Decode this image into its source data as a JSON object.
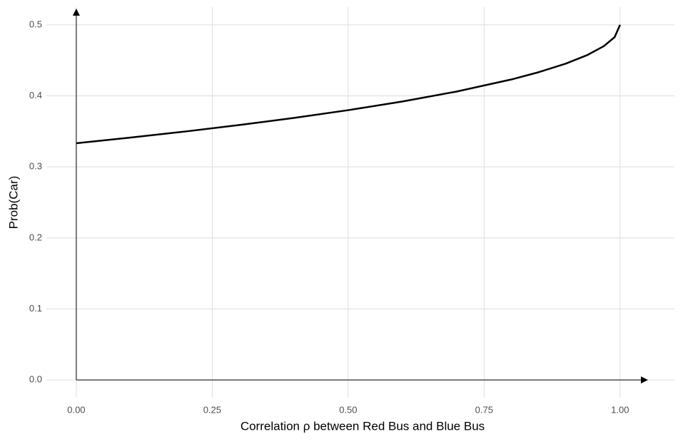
{
  "chart_data": {
    "type": "line",
    "x_label": "Correlation ρ between Red Bus and Blue Bus",
    "y_label": "Prob(Car)",
    "x": [
      0,
      0.1,
      0.2,
      0.3,
      0.4,
      0.5,
      0.6,
      0.7,
      0.8,
      0.85,
      0.9,
      0.94,
      0.97,
      0.99,
      1
    ],
    "series": [
      {
        "color": "#000000",
        "values": [
          0.3333,
          0.3413,
          0.3498,
          0.359,
          0.3689,
          0.3799,
          0.3921,
          0.4062,
          0.4231,
          0.4333,
          0.4454,
          0.4576,
          0.47,
          0.4827,
          0.5
        ]
      }
    ],
    "xlim": [
      -0.055,
      1.1
    ],
    "ylim": [
      -0.025,
      0.525
    ],
    "xticks": [
      {
        "value": 0,
        "label": "0.00"
      },
      0.25,
      {
        "value": 0.5,
        "label": "0.50"
      },
      0.75,
      {
        "value": 1,
        "label": "1.00"
      }
    ],
    "yticks": [
      {
        "value": 0,
        "label": "0.0"
      },
      0.1,
      0.2,
      0.3,
      0.4,
      0.5
    ],
    "grid": true
  }
}
